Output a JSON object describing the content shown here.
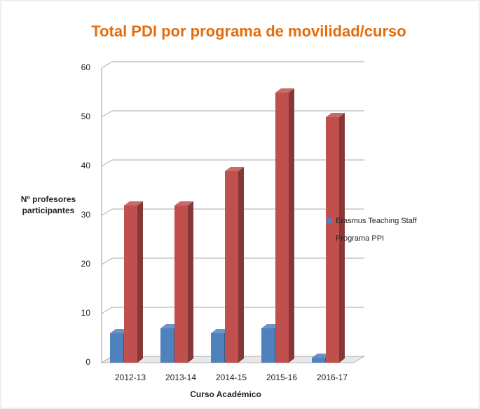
{
  "chart_data": {
    "type": "bar3d",
    "title": "Total PDI por programa de movilidad/curso",
    "x_label": "Curso Académico",
    "y_label": "Nº profesores participantes",
    "categories": [
      "2012-13",
      "2013-14",
      "2014-15",
      "2015-16",
      "2016-17"
    ],
    "series": [
      {
        "name": "Erasmus Teaching Staff",
        "color": "#4f81bd",
        "values": [
          6,
          7,
          6,
          7,
          1
        ]
      },
      {
        "name": "Programa PPI",
        "color": "#c0504d",
        "values": [
          32,
          32,
          39,
          55,
          50
        ]
      }
    ],
    "ylim": [
      0,
      60
    ],
    "yticks": [
      0,
      10,
      20,
      30,
      40,
      50,
      60
    ],
    "grid": true,
    "legend": "right"
  }
}
